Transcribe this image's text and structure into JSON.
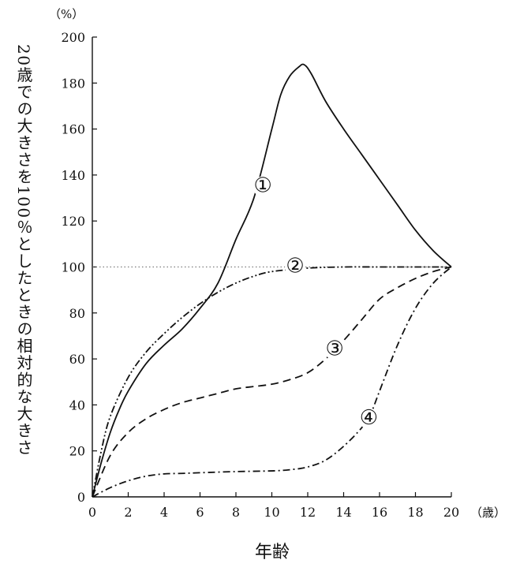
{
  "chart_data": {
    "type": "line",
    "title": "",
    "xlabel": "年齢",
    "ylabel": "20歳での大きさを100％としたときの相対的な大きさ",
    "x_unit": "（歳）",
    "y_unit": "（%）",
    "xlim": [
      0,
      20
    ],
    "ylim": [
      0,
      200
    ],
    "x_ticks": [
      0,
      2,
      4,
      6,
      8,
      10,
      12,
      14,
      16,
      18,
      20
    ],
    "y_ticks": [
      0,
      20,
      40,
      60,
      80,
      100,
      120,
      140,
      160,
      180,
      200
    ],
    "grid": false,
    "reference_line": {
      "y": 100,
      "style": "dotted"
    },
    "series": [
      {
        "name": "①",
        "style": "solid",
        "x": [
          0,
          0.5,
          1,
          1.5,
          2,
          3,
          4,
          5,
          6,
          7,
          8,
          9,
          10,
          10.5,
          11,
          11.5,
          11.8,
          12.2,
          13,
          14,
          15,
          16,
          17,
          18,
          19,
          20
        ],
        "y": [
          0,
          15,
          28,
          38,
          46,
          58,
          66,
          73,
          82,
          93,
          112,
          130,
          160,
          175,
          183,
          187,
          188,
          184,
          172,
          160,
          149,
          138,
          127,
          116,
          107,
          100
        ]
      },
      {
        "name": "②",
        "style": "dash-dot-dot",
        "x": [
          0,
          0.5,
          1,
          2,
          3,
          4,
          5,
          6,
          7,
          8,
          9,
          10,
          12,
          14,
          16,
          18,
          20
        ],
        "y": [
          0,
          20,
          35,
          52,
          63,
          71,
          78,
          84,
          89,
          93,
          96,
          98,
          99.5,
          100,
          100,
          100,
          100
        ]
      },
      {
        "name": "③",
        "style": "dashed",
        "x": [
          0,
          1,
          2,
          3,
          4,
          5,
          6,
          7,
          8,
          9,
          10,
          11,
          12,
          13,
          14,
          15,
          16,
          17,
          18,
          19,
          20
        ],
        "y": [
          0,
          18,
          28,
          34,
          38,
          41,
          43,
          45,
          47,
          48,
          49,
          51,
          54,
          60,
          68,
          77,
          86,
          91,
          95,
          98,
          100
        ]
      },
      {
        "name": "④",
        "style": "dash-dot",
        "x": [
          0,
          1,
          2,
          3,
          4,
          5,
          6,
          8,
          10,
          11,
          12,
          13,
          14,
          15,
          15.5,
          16,
          17,
          18,
          19,
          20
        ],
        "y": [
          0,
          4,
          7,
          9,
          10,
          10.2,
          10.5,
          11,
          11.3,
          11.8,
          13,
          16,
          22,
          30,
          36,
          46,
          66,
          82,
          93,
          100
        ]
      }
    ],
    "curve_labels": [
      {
        "text": "①",
        "x": 9.5,
        "y": 135
      },
      {
        "text": "②",
        "x": 11.3,
        "y": 100
      },
      {
        "text": "③",
        "x": 13.5,
        "y": 64
      },
      {
        "text": "④",
        "x": 15.4,
        "y": 34
      }
    ]
  }
}
